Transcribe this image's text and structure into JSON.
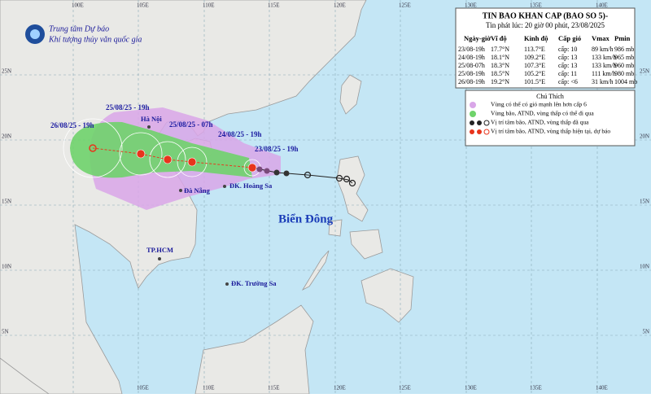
{
  "agency": {
    "name": "Trung tâm Dự báo",
    "subname": "Khí tượng thủy văn quốc gia"
  },
  "bulletin": {
    "title": "TIN BAO KHAN CAP (BAO SO 5)-",
    "issued": "Tin phát lúc: 20 giờ 00 phút, 23/08/2025",
    "columns": [
      "Ngày-giờ",
      "Vĩ độ",
      "Kinh độ",
      "Cấp gió",
      "Vmax",
      "Pmin"
    ],
    "rows": [
      [
        "23/08-19h",
        "17.7°N",
        "113.7°E",
        "cấp: 10",
        "89 km/h",
        "986 mb"
      ],
      [
        "24/08-19h",
        "18.1°N",
        "109.2°E",
        "cấp: 13",
        "133 km/h",
        "965 mb"
      ],
      [
        "25/08-07h",
        "18.3°N",
        "107.3°E",
        "cấp: 13",
        "133 km/h",
        "960 mb"
      ],
      [
        "25/08-19h",
        "18.5°N",
        "105.2°E",
        "cấp: 11",
        "111 km/h",
        "980 mb"
      ],
      [
        "26/08-19h",
        "19.2°N",
        "101.5°E",
        "cấp: <6",
        "31 km/h",
        "1004 mb"
      ]
    ]
  },
  "legend": {
    "title": "Chú Thích",
    "items": [
      "Vùng có thể có gió mạnh lên hơn cấp 6",
      "Vùng bão, ATND, vùng thấp có thể đi qua",
      "Vị trí tâm bão, ATND, vùng thấp đã qua",
      "Vị trí tâm bão, ATND, vùng thấp hiện tại, dự báo"
    ]
  },
  "map": {
    "track_labels": [
      "25/08/25 - 19h",
      "26/08/25 - 19h",
      "25/08/25 - 07h",
      "24/08/25 - 19h",
      "23/08/25 - 19h"
    ],
    "places": [
      "Hà Nội",
      "Đà Nẵng",
      "ĐK. Hoàng Sa",
      "TP.HCM",
      "ĐK. Trường Sa"
    ],
    "sea_name": "Biển Đông",
    "lon_labels_top": [
      "100E",
      "105E",
      "110E",
      "115E",
      "120E",
      "125E",
      "130E",
      "135E",
      "140E"
    ],
    "lon_labels_bottom": [
      "105E",
      "110E",
      "115E",
      "120E",
      "125E",
      "130E",
      "135E",
      "140E"
    ],
    "lat_labels_left": [
      "25N",
      "20N",
      "15N",
      "10N",
      "5N"
    ],
    "lat_labels_right": [
      "25N",
      "20N",
      "15N",
      "10N",
      "5N"
    ]
  }
}
